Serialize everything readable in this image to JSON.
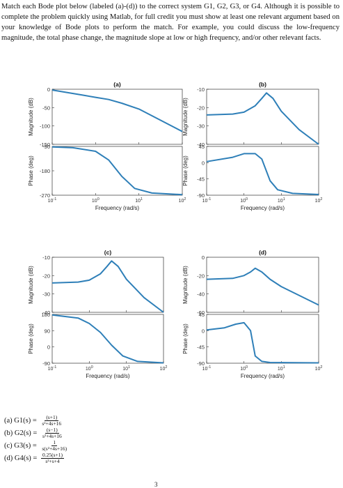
{
  "intro_text": "Match each Bode plot below (labeled (a)-(d)) to the correct system G1, G2, G3, or G4. Although it is possible to complete the problem quickly using Matlab, for full credit you must show at least one relevant argument based on your knowledge of Bode plots to perform the match. For example, you could discuss the low-frequency magnitude, the total phase change, the magnitude slope at low or high frequency, and/or other relevant facts.",
  "chart_data": [
    {
      "type": "line",
      "title": "(a)",
      "xlabel": "Frequency (rad/s)",
      "x_ticks": [
        "10-1",
        "100",
        "101",
        "102"
      ],
      "magnitude": {
        "ylabel": "Magnitude (dB)",
        "ylim": [
          -150,
          0
        ],
        "ticks": [
          "0",
          "-50",
          "-100",
          "-150"
        ],
        "x": [
          0.1,
          0.5,
          1,
          2,
          4,
          10,
          100
        ],
        "y": [
          -2,
          -16,
          -22,
          -28,
          -38,
          -54,
          -115
        ]
      },
      "phase": {
        "ylabel": "Phase (deg)",
        "ylim": [
          -270,
          -90
        ],
        "ticks": [
          "-90",
          "-180",
          "-270"
        ],
        "x": [
          0.1,
          0.3,
          1,
          2,
          4,
          8,
          20,
          100
        ],
        "y": [
          -92,
          -95,
          -108,
          -140,
          -200,
          -245,
          -262,
          -268
        ]
      }
    },
    {
      "type": "line",
      "title": "(b)",
      "xlabel": "Frequency (rad/s)",
      "x_ticks": [
        "10-1",
        "100",
        "101",
        "102"
      ],
      "magnitude": {
        "ylabel": "Magnitude (dB)",
        "ylim": [
          -40,
          -10
        ],
        "ticks": [
          "-10",
          "-20",
          "-30",
          "-40"
        ],
        "x": [
          0.1,
          0.5,
          1,
          2,
          3,
          4,
          6,
          10,
          30,
          100
        ],
        "y": [
          -24,
          -23.5,
          -22.5,
          -19,
          -15,
          -12,
          -15,
          -22,
          -32,
          -40
        ]
      },
      "phase": {
        "ylabel": "Phase (deg)",
        "ylim": [
          -90,
          45
        ],
        "ticks": [
          "45",
          "0",
          "-45",
          "-90"
        ],
        "x": [
          0.1,
          0.5,
          1,
          2,
          3,
          5,
          8,
          20,
          100
        ],
        "y": [
          3,
          15,
          25,
          25,
          10,
          -50,
          -75,
          -85,
          -88
        ]
      }
    },
    {
      "type": "line",
      "title": "(c)",
      "xlabel": "Frequency (rad/s)",
      "x_ticks": [
        "10-1",
        "100",
        "101",
        "102"
      ],
      "magnitude": {
        "ylabel": "Magnitude (dB)",
        "ylim": [
          -40,
          -10
        ],
        "ticks": [
          "-10",
          "-20",
          "-30",
          "-40"
        ],
        "x": [
          0.1,
          0.5,
          1,
          2,
          3,
          4,
          6,
          10,
          30,
          100
        ],
        "y": [
          -24,
          -23.5,
          -22.5,
          -19,
          -15,
          -12,
          -15,
          -22,
          -32,
          -40
        ]
      },
      "phase": {
        "ylabel": "Phase (deg)",
        "ylim": [
          -90,
          180
        ],
        "ticks": [
          "180",
          "90",
          "0",
          "-90"
        ],
        "x": [
          0.1,
          0.5,
          1,
          2,
          4,
          8,
          20,
          100
        ],
        "y": [
          177,
          160,
          130,
          80,
          10,
          -50,
          -80,
          -88
        ]
      }
    },
    {
      "type": "line",
      "title": "(d)",
      "xlabel": "Frequency (rad/s)",
      "x_ticks": [
        "10-1",
        "100",
        "101",
        "102"
      ],
      "magnitude": {
        "ylabel": "Magnitude (dB)",
        "ylim": [
          -60,
          0
        ],
        "ticks": [
          "0",
          "-20",
          "-40",
          "-60"
        ],
        "x": [
          0.1,
          0.5,
          1,
          1.5,
          2,
          3,
          5,
          10,
          100
        ],
        "y": [
          -24,
          -23,
          -20,
          -16,
          -12,
          -16,
          -24,
          -32,
          -52
        ]
      },
      "phase": {
        "ylabel": "Phase (deg)",
        "ylim": [
          -90,
          45
        ],
        "ticks": [
          "45",
          "0",
          "-45",
          "-90"
        ],
        "x": [
          0.1,
          0.3,
          0.6,
          1,
          1.5,
          2,
          3,
          5,
          100
        ],
        "y": [
          2,
          8,
          18,
          22,
          0,
          -70,
          -85,
          -88,
          -89
        ]
      }
    }
  ],
  "equations": [
    {
      "label": "(a) G1(s) = ",
      "num": "(s+1)",
      "den": "s²+4s+16"
    },
    {
      "label": "(b) G2(s) = ",
      "num": "(s−1)",
      "den": "s²+4s+16"
    },
    {
      "label": "(c) G3(s) = ",
      "num": "1",
      "den": "s(s²+4s+16)"
    },
    {
      "label": "(d) G4(s) = ",
      "num": "0.25(s+1)",
      "den": "s²+s+4"
    }
  ],
  "page_number": "3",
  "line_color": "#2e7fb8"
}
